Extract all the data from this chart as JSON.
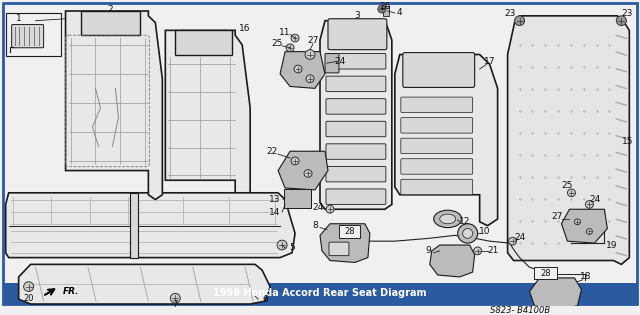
{
  "title": "1998 Honda Accord Rear Seat Diagram",
  "part_code": "S823- B4100B",
  "bg_color": "#f0f0f0",
  "border_color": "#2a5aa0",
  "title_color": "#ffffff",
  "title_bg": "#2a5aa0",
  "fig_width": 6.4,
  "fig_height": 3.15,
  "dpi": 100,
  "label_color": "#111111",
  "line_color": "#222222",
  "seat_edge": "#1a1a1a",
  "seat_fill": "#e8e8e8",
  "seat_fill2": "#d8d8d8",
  "hardware_fill": "#bbbbbb",
  "title_fontsize": 7.0,
  "label_fontsize": 6.5
}
